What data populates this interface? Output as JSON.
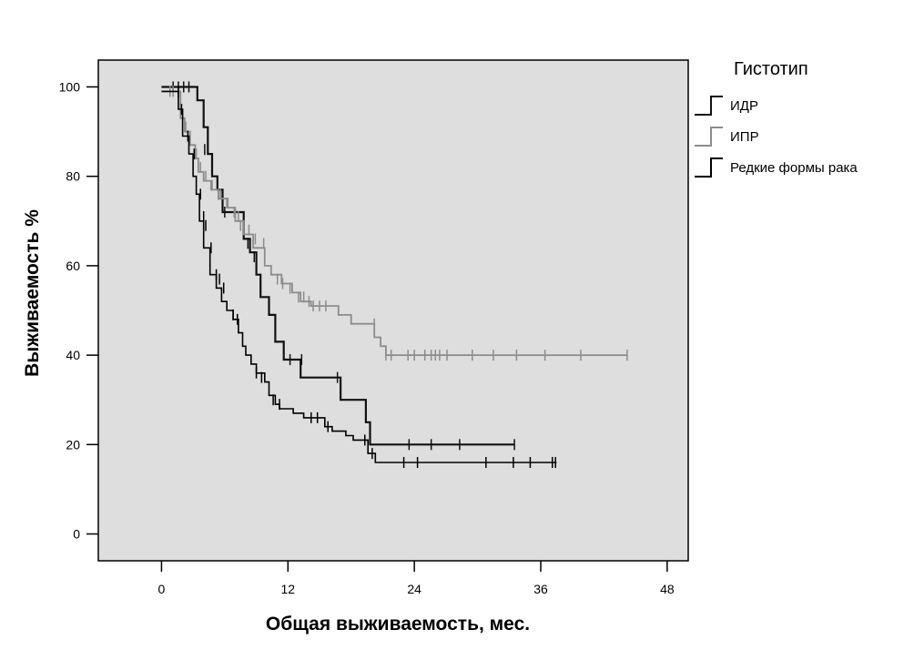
{
  "chart_data": {
    "type": "line",
    "subtype": "kaplan-meier-step",
    "xlabel": "Общая выживаемость, мес.",
    "ylabel": "Выживаемость %",
    "xlim": [
      -6,
      50
    ],
    "ylim": [
      -6,
      106
    ],
    "xticks": [
      "0",
      "12",
      "24",
      "36",
      "48"
    ],
    "yticks": [
      "0",
      "20",
      "40",
      "60",
      "80",
      "100"
    ],
    "grid": false,
    "legend": {
      "title": "Гистотип",
      "position": "right"
    },
    "series": [
      {
        "name": "ИДР",
        "color": "#111111",
        "steps": [
          [
            0,
            100
          ],
          [
            3.4,
            100
          ],
          [
            3.4,
            97
          ],
          [
            4.0,
            97
          ],
          [
            4.0,
            91
          ],
          [
            4.4,
            91
          ],
          [
            4.4,
            85
          ],
          [
            4.8,
            85
          ],
          [
            4.8,
            80
          ],
          [
            5.3,
            80
          ],
          [
            5.3,
            77
          ],
          [
            5.8,
            77
          ],
          [
            5.8,
            72
          ],
          [
            7.8,
            72
          ],
          [
            7.8,
            66
          ],
          [
            8.4,
            66
          ],
          [
            8.4,
            63
          ],
          [
            9.0,
            63
          ],
          [
            9.0,
            58
          ],
          [
            9.4,
            58
          ],
          [
            9.4,
            53
          ],
          [
            10.2,
            53
          ],
          [
            10.2,
            49
          ],
          [
            10.8,
            49
          ],
          [
            10.8,
            43
          ],
          [
            11.6,
            43
          ],
          [
            11.6,
            39
          ],
          [
            13.2,
            39
          ],
          [
            13.2,
            35
          ],
          [
            17.0,
            35
          ],
          [
            17.0,
            30
          ],
          [
            19.4,
            30
          ],
          [
            19.4,
            25
          ],
          [
            19.8,
            25
          ],
          [
            19.8,
            20
          ],
          [
            33.5,
            20
          ]
        ],
        "censored": [
          [
            1.1,
            100
          ],
          [
            1.6,
            100
          ],
          [
            2.1,
            100
          ],
          [
            2.6,
            100
          ],
          [
            4.1,
            86
          ],
          [
            5.4,
            76
          ],
          [
            6.0,
            72
          ],
          [
            8.2,
            65
          ],
          [
            8.8,
            62
          ],
          [
            11.6,
            42
          ],
          [
            12.2,
            39
          ],
          [
            13.3,
            39
          ],
          [
            16.7,
            35
          ],
          [
            23.5,
            20
          ],
          [
            25.6,
            20
          ],
          [
            28.3,
            20
          ],
          [
            33.5,
            20
          ]
        ]
      },
      {
        "name": "ИПР",
        "color": "#8c8c8c",
        "steps": [
          [
            0,
            99
          ],
          [
            1.8,
            99
          ],
          [
            1.8,
            93
          ],
          [
            2.2,
            93
          ],
          [
            2.2,
            90
          ],
          [
            2.7,
            90
          ],
          [
            2.7,
            87
          ],
          [
            3.2,
            87
          ],
          [
            3.2,
            84
          ],
          [
            3.5,
            84
          ],
          [
            3.5,
            81
          ],
          [
            4.0,
            81
          ],
          [
            4.0,
            79
          ],
          [
            4.7,
            79
          ],
          [
            4.7,
            77
          ],
          [
            5.4,
            77
          ],
          [
            5.4,
            75
          ],
          [
            6.2,
            75
          ],
          [
            6.2,
            73
          ],
          [
            7.0,
            73
          ],
          [
            7.0,
            70
          ],
          [
            7.8,
            70
          ],
          [
            7.8,
            67
          ],
          [
            8.7,
            67
          ],
          [
            8.7,
            64
          ],
          [
            9.8,
            64
          ],
          [
            9.8,
            60
          ],
          [
            10.4,
            60
          ],
          [
            10.4,
            58
          ],
          [
            11.4,
            58
          ],
          [
            11.4,
            56
          ],
          [
            12.4,
            56
          ],
          [
            12.4,
            54
          ],
          [
            13.2,
            54
          ],
          [
            13.2,
            52
          ],
          [
            14.2,
            52
          ],
          [
            14.2,
            51
          ],
          [
            16.8,
            51
          ],
          [
            16.8,
            49
          ],
          [
            18.0,
            49
          ],
          [
            18.0,
            47
          ],
          [
            20.2,
            47
          ],
          [
            20.2,
            44
          ],
          [
            20.8,
            44
          ],
          [
            20.8,
            42
          ],
          [
            21.3,
            42
          ],
          [
            21.3,
            40
          ],
          [
            44.2,
            40
          ]
        ],
        "censored": [
          [
            0.8,
            99
          ],
          [
            1.1,
            99
          ],
          [
            2.3,
            91
          ],
          [
            2.7,
            88
          ],
          [
            3.3,
            85
          ],
          [
            3.7,
            82
          ],
          [
            4.2,
            80
          ],
          [
            4.8,
            78
          ],
          [
            5.6,
            76
          ],
          [
            6.3,
            74
          ],
          [
            6.9,
            72
          ],
          [
            7.3,
            71
          ],
          [
            7.5,
            69
          ],
          [
            8.3,
            68
          ],
          [
            8.9,
            66
          ],
          [
            9.7,
            65
          ],
          [
            11.0,
            57
          ],
          [
            11.5,
            56
          ],
          [
            12.2,
            55
          ],
          [
            13.0,
            53
          ],
          [
            13.5,
            53
          ],
          [
            14.0,
            52
          ],
          [
            14.4,
            51
          ],
          [
            15.0,
            51
          ],
          [
            15.6,
            51
          ],
          [
            20.2,
            47
          ],
          [
            21.3,
            40
          ],
          [
            21.8,
            40
          ],
          [
            23.4,
            40
          ],
          [
            24.0,
            40
          ],
          [
            25.0,
            40
          ],
          [
            25.6,
            40
          ],
          [
            26.0,
            40
          ],
          [
            26.4,
            40
          ],
          [
            27.1,
            40
          ],
          [
            29.5,
            40
          ],
          [
            31.5,
            40
          ],
          [
            33.7,
            40
          ],
          [
            36.4,
            40
          ],
          [
            39.8,
            40
          ],
          [
            44.2,
            40
          ]
        ]
      },
      {
        "name": "Редкие формы рака",
        "color": "#000000",
        "steps": [
          [
            0,
            99
          ],
          [
            1.6,
            99
          ],
          [
            1.6,
            95
          ],
          [
            2.0,
            95
          ],
          [
            2.0,
            89
          ],
          [
            2.6,
            89
          ],
          [
            2.6,
            85
          ],
          [
            3.0,
            85
          ],
          [
            3.0,
            80
          ],
          [
            3.3,
            80
          ],
          [
            3.3,
            76
          ],
          [
            3.6,
            76
          ],
          [
            3.6,
            70
          ],
          [
            4.0,
            70
          ],
          [
            4.0,
            64
          ],
          [
            4.6,
            64
          ],
          [
            4.6,
            58
          ],
          [
            5.2,
            58
          ],
          [
            5.2,
            55
          ],
          [
            5.7,
            55
          ],
          [
            5.7,
            52
          ],
          [
            6.2,
            52
          ],
          [
            6.2,
            50
          ],
          [
            6.8,
            50
          ],
          [
            6.8,
            48
          ],
          [
            7.3,
            48
          ],
          [
            7.3,
            45
          ],
          [
            7.7,
            45
          ],
          [
            7.7,
            42
          ],
          [
            8.0,
            42
          ],
          [
            8.0,
            40
          ],
          [
            8.5,
            40
          ],
          [
            8.5,
            38
          ],
          [
            9.0,
            38
          ],
          [
            9.0,
            36
          ],
          [
            9.8,
            36
          ],
          [
            9.8,
            34
          ],
          [
            10.2,
            34
          ],
          [
            10.2,
            31
          ],
          [
            10.8,
            31
          ],
          [
            10.8,
            29
          ],
          [
            11.2,
            29
          ],
          [
            11.2,
            28
          ],
          [
            12.5,
            28
          ],
          [
            12.5,
            27
          ],
          [
            13.5,
            27
          ],
          [
            13.5,
            26
          ],
          [
            15.5,
            26
          ],
          [
            15.5,
            24
          ],
          [
            16.2,
            24
          ],
          [
            16.2,
            23
          ],
          [
            17.5,
            23
          ],
          [
            17.5,
            22
          ],
          [
            18.2,
            22
          ],
          [
            18.2,
            21
          ],
          [
            19.6,
            21
          ],
          [
            19.6,
            18
          ],
          [
            20.3,
            18
          ],
          [
            20.3,
            16
          ],
          [
            37.5,
            16
          ]
        ],
        "censored": [
          [
            1.6,
            99
          ],
          [
            1.9,
            95
          ],
          [
            2.5,
            89
          ],
          [
            3.1,
            85
          ],
          [
            3.7,
            76
          ],
          [
            4.0,
            71
          ],
          [
            4.2,
            69
          ],
          [
            4.7,
            64
          ],
          [
            5.2,
            58
          ],
          [
            5.5,
            57
          ],
          [
            5.9,
            55
          ],
          [
            6.8,
            49
          ],
          [
            7.2,
            48
          ],
          [
            9.0,
            36
          ],
          [
            9.5,
            35
          ],
          [
            10.6,
            30
          ],
          [
            11.2,
            29
          ],
          [
            14.2,
            26
          ],
          [
            14.8,
            26
          ],
          [
            15.8,
            24
          ],
          [
            19.3,
            21
          ],
          [
            20.0,
            18
          ],
          [
            23.0,
            16
          ],
          [
            24.3,
            16
          ],
          [
            30.8,
            16
          ],
          [
            33.4,
            16
          ],
          [
            35.0,
            16
          ],
          [
            37.1,
            16
          ],
          [
            37.4,
            16
          ]
        ]
      }
    ]
  }
}
